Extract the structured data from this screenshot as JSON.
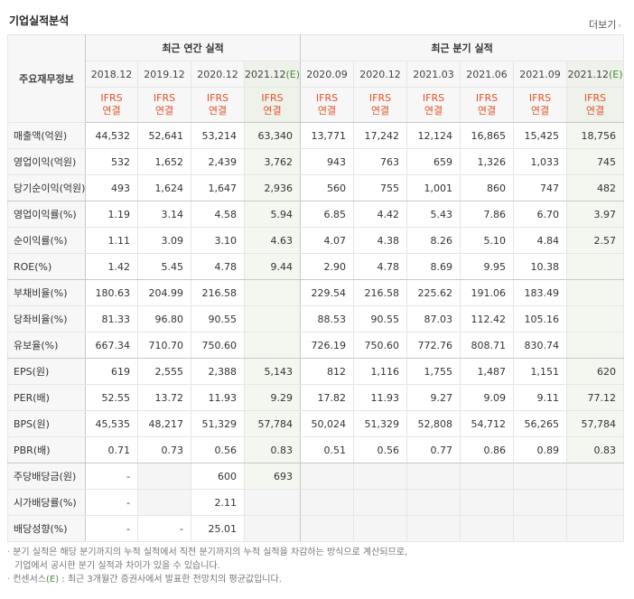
{
  "title": "기업실적분석",
  "more_label": "더보기",
  "header": {
    "row_label": "주요재무정보",
    "annual_group": "최근 연간 실적",
    "quarter_group": "최근 분기 실적",
    "periods": [
      "2018.12",
      "2019.12",
      "2020.12",
      "2021.12",
      "2020.09",
      "2020.12",
      "2021.03",
      "2021.06",
      "2021.09",
      "2021.12"
    ],
    "estimate_mark": "(E)",
    "ifrs": "IFRS",
    "consolidated": "연결"
  },
  "rows": [
    {
      "label": "매출액(억원)",
      "values": [
        "44,532",
        "52,641",
        "53,214",
        "63,340",
        "13,771",
        "17,242",
        "12,124",
        "16,865",
        "15,425",
        "18,756"
      ]
    },
    {
      "label": "영업이익(억원)",
      "values": [
        "532",
        "1,652",
        "2,439",
        "3,762",
        "943",
        "763",
        "659",
        "1,326",
        "1,033",
        "745"
      ]
    },
    {
      "label": "당기순이익(억원)",
      "values": [
        "493",
        "1,624",
        "1,647",
        "2,936",
        "560",
        "755",
        "1,001",
        "860",
        "747",
        "482"
      ]
    },
    {
      "label": "영업이익률(%)",
      "values": [
        "1.19",
        "3.14",
        "4.58",
        "5.94",
        "6.85",
        "4.42",
        "5.43",
        "7.86",
        "6.70",
        "3.97"
      ]
    },
    {
      "label": "순이익률(%)",
      "values": [
        "1.11",
        "3.09",
        "3.10",
        "4.63",
        "4.07",
        "4.38",
        "8.26",
        "5.10",
        "4.84",
        "2.57"
      ]
    },
    {
      "label": "ROE(%)",
      "values": [
        "1.42",
        "5.45",
        "4.78",
        "9.44",
        "2.90",
        "4.78",
        "8.69",
        "9.95",
        "10.38",
        ""
      ]
    },
    {
      "label": "부채비율(%)",
      "values": [
        "180.63",
        "204.99",
        "216.58",
        "",
        "229.54",
        "216.58",
        "225.62",
        "191.06",
        "183.49",
        ""
      ]
    },
    {
      "label": "당좌비율(%)",
      "values": [
        "81.33",
        "96.80",
        "90.55",
        "",
        "88.53",
        "90.55",
        "87.03",
        "112.42",
        "105.16",
        ""
      ]
    },
    {
      "label": "유보율(%)",
      "values": [
        "667.34",
        "710.70",
        "750.60",
        "",
        "726.19",
        "750.60",
        "772.76",
        "808.71",
        "830.74",
        ""
      ]
    },
    {
      "label": "EPS(원)",
      "values": [
        "619",
        "2,555",
        "2,388",
        "5,143",
        "812",
        "1,116",
        "1,755",
        "1,487",
        "1,151",
        "620"
      ]
    },
    {
      "label": "PER(배)",
      "values": [
        "52.55",
        "13.72",
        "11.93",
        "9.29",
        "17.82",
        "11.93",
        "9.27",
        "9.09",
        "9.11",
        "77.12"
      ]
    },
    {
      "label": "BPS(원)",
      "values": [
        "45,535",
        "48,217",
        "51,329",
        "57,784",
        "50,024",
        "51,329",
        "52,808",
        "54,712",
        "56,265",
        "57,784"
      ]
    },
    {
      "label": "PBR(배)",
      "values": [
        "0.71",
        "0.73",
        "0.56",
        "0.83",
        "0.51",
        "0.56",
        "0.77",
        "0.86",
        "0.89",
        "0.83"
      ]
    },
    {
      "label": "주당배당금(원)",
      "values": [
        "-",
        "",
        "600",
        "693",
        "",
        "",
        "",
        "",
        "",
        ""
      ]
    },
    {
      "label": "시가배당률(%)",
      "values": [
        "-",
        "",
        "2.11",
        "",
        "",
        "",
        "",
        "",
        "",
        ""
      ]
    },
    {
      "label": "배당성향(%)",
      "values": [
        "-",
        "-",
        "25.01",
        "",
        "",
        "",
        "",
        "",
        "",
        ""
      ]
    }
  ],
  "notes": {
    "line1": "분기 실적은 해당 분기까지의 누적 실적에서 직전 분기까지의 누적 실적을 차감하는 방식으로 계산되므로,",
    "line2": "기업에서 공시한 분기 실적과 차이가 있을 수 있습니다.",
    "line3_prefix": "컨센서스",
    "line3_mark": "(E)",
    "line3_suffix": " : 최근 3개월간 증권사에서 발표한 전망치의 평균값입니다."
  },
  "colors": {
    "ifrs_text": "#e3522a",
    "estimate_text": "#4a8b3a",
    "estimate_bg": "#f3f7f0",
    "header_bg": "#f7f7f7"
  }
}
